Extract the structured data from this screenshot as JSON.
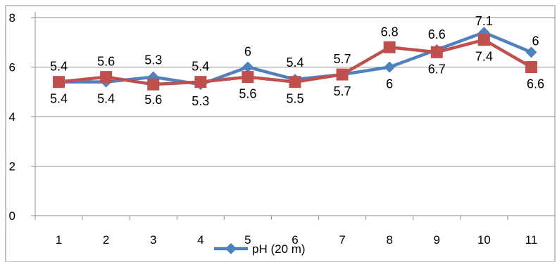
{
  "chart_data": {
    "type": "line",
    "categories": [
      "1",
      "2",
      "3",
      "4",
      "5",
      "6",
      "7",
      "8",
      "9",
      "10",
      "11"
    ],
    "y_ticks": [
      "0",
      "2",
      "4",
      "6",
      "8"
    ],
    "ylim": [
      0,
      8
    ],
    "grid": "horizontal",
    "legend_placement": "bottom",
    "series": [
      {
        "name": "pH (20 m)",
        "color": "#4f81bd",
        "marker": "diamond",
        "values": [
          5.4,
          5.4,
          5.6,
          5.3,
          6.0,
          5.5,
          5.7,
          6.0,
          6.7,
          7.4,
          6.6
        ],
        "labels": [
          "5.4",
          "5.4",
          "5.6",
          "5.3",
          "6",
          "5.5",
          "5.7",
          "6",
          "6.7",
          "7.4",
          "6.6"
        ]
      },
      {
        "color": "#c0504d",
        "marker": "square",
        "values": [
          5.4,
          5.6,
          5.3,
          5.4,
          5.6,
          5.4,
          5.7,
          6.8,
          6.6,
          7.1,
          6.0
        ],
        "labels": [
          "5.4",
          "5.6",
          "5.3",
          "5.4",
          "5.6",
          "5.4",
          "5.7",
          "6.8",
          "6.6",
          "7.1",
          "6"
        ]
      }
    ]
  }
}
